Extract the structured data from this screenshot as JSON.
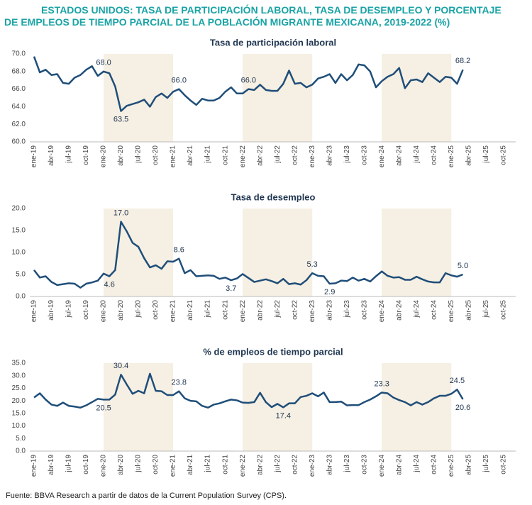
{
  "title": "ESTADOS UNIDOS: TASA DE PARTICIPACIÓN LABORAL, TASA DE DESEMPLEO Y PORCENTAJE DE EMPLEOS DE TIEMPO PARCIAL DE LA POBLACIÓN MIGRANTE MEXICANA, 2019-2022 (%)",
  "source": "Fuente: BBVA Research a partir de datos de la Current Population Survey (CPS).",
  "chart_data": [
    {
      "type": "line",
      "title": "Tasa de participación laboral",
      "categories": [
        "ene-19",
        null,
        null,
        "abr-19",
        null,
        null,
        "jul-19",
        null,
        null,
        "oct-19",
        null,
        null,
        "ene-20",
        null,
        null,
        "abr-20",
        null,
        null,
        "jul-20",
        null,
        null,
        "oct-20",
        null,
        null,
        "ene-21",
        null,
        null,
        "abr-21",
        null,
        null,
        "jul-21",
        null,
        null,
        "oct-21",
        null,
        null,
        "ene-22",
        null,
        null,
        "abr-22",
        null,
        null,
        "jul-22",
        null,
        null,
        "oct-22",
        null,
        null,
        "ene-23",
        null,
        null,
        "abr-23",
        null,
        null,
        "jul-23",
        null,
        null,
        "oct-23",
        null,
        null,
        "ene-24",
        null,
        null,
        "abr-24",
        null,
        null,
        "jul-24",
        null,
        null,
        "oct-24",
        null,
        null,
        "ene-25",
        null,
        null,
        "abr-25",
        null,
        null,
        "jul-25",
        null,
        null,
        "oct-25",
        null,
        null
      ],
      "series": [
        {
          "color": "#1f4e79",
          "values": [
            69.7,
            67.9,
            68.2,
            67.6,
            67.7,
            66.7,
            66.6,
            67.3,
            67.6,
            68.2,
            68.6,
            67.5,
            68.0,
            67.8,
            66.3,
            63.5,
            64.1,
            64.3,
            64.5,
            64.8,
            64.0,
            65.1,
            65.5,
            65.0,
            65.7,
            66.0,
            65.3,
            64.7,
            64.2,
            64.9,
            64.7,
            64.7,
            65.0,
            65.7,
            66.2,
            65.5,
            65.5,
            66.0,
            65.9,
            66.5,
            65.9,
            65.8,
            65.8,
            66.6,
            68.1,
            66.6,
            66.7,
            66.2,
            66.5,
            67.2,
            67.4,
            67.7,
            66.7,
            67.7,
            67.0,
            67.6,
            68.8,
            68.7,
            68.0,
            66.2,
            66.9,
            67.4,
            67.7,
            68.4,
            66.1,
            67.0,
            67.1,
            66.8,
            67.8,
            67.3,
            66.8,
            67.4,
            67.3,
            66.6,
            68.2,
            null,
            null,
            null,
            null,
            null,
            null,
            null,
            null,
            null
          ],
          "value_labels": [
            null,
            null,
            null,
            null,
            null,
            null,
            null,
            null,
            null,
            null,
            null,
            null,
            "68.0",
            null,
            null,
            "63.5",
            null,
            null,
            null,
            null,
            null,
            null,
            null,
            null,
            null,
            "66.0",
            null,
            null,
            null,
            null,
            null,
            null,
            null,
            null,
            null,
            null,
            null,
            "66.0",
            null,
            null,
            null,
            null,
            null,
            null,
            null,
            null,
            null,
            null,
            null,
            null,
            null,
            null,
            null,
            null,
            null,
            null,
            null,
            null,
            null,
            null,
            null,
            null,
            null,
            null,
            null,
            null,
            null,
            null,
            null,
            null,
            null,
            null,
            null,
            null,
            "68.2",
            null,
            null,
            null,
            null,
            null,
            null,
            null,
            null,
            null
          ]
        }
      ],
      "ylim": [
        60,
        70
      ],
      "yticks": [
        {
          "value": 60,
          "label": "60.0"
        },
        {
          "value": 62,
          "label": "62.0"
        },
        {
          "value": 64,
          "label": "64.0"
        },
        {
          "value": 66,
          "label": "66.0"
        },
        {
          "value": 68,
          "label": "68.0"
        },
        {
          "value": 70,
          "label": "70.0"
        }
      ]
    },
    {
      "type": "line",
      "title": "Tasa de desempleo",
      "categories": [
        "ene-19",
        null,
        null,
        "abr-19",
        null,
        null,
        "jul-19",
        null,
        null,
        "oct-19",
        null,
        null,
        "ene-20",
        null,
        null,
        "abr-20",
        null,
        null,
        "jul-20",
        null,
        null,
        "oct-20",
        null,
        null,
        "ene-21",
        null,
        null,
        "abr-21",
        null,
        null,
        "jul-21",
        null,
        null,
        "oct-21",
        null,
        null,
        "ene-22",
        null,
        null,
        "abr-22",
        null,
        null,
        "jul-22",
        null,
        null,
        "oct-22",
        null,
        null,
        "ene-23",
        null,
        null,
        "abr-23",
        null,
        null,
        "jul-23",
        null,
        null,
        "oct-23",
        null,
        null,
        "ene-24",
        null,
        null,
        "abr-24",
        null,
        null,
        "jul-24",
        null,
        null,
        "oct-24",
        null,
        null,
        "ene-25",
        null,
        null,
        "abr-25",
        null,
        null,
        "jul-25",
        null,
        null,
        "oct-25",
        null,
        null
      ],
      "series": [
        {
          "color": "#1f4e79",
          "values": [
            6.0,
            4.3,
            4.6,
            3.3,
            2.6,
            2.8,
            3.0,
            2.9,
            2.0,
            2.9,
            3.2,
            3.6,
            5.2,
            4.6,
            6.0,
            17.0,
            14.8,
            12.2,
            11.3,
            8.7,
            6.6,
            7.1,
            6.3,
            8.0,
            7.9,
            8.6,
            5.3,
            6.0,
            4.6,
            4.7,
            4.8,
            4.7,
            4.0,
            4.3,
            3.7,
            4.1,
            5.1,
            4.2,
            3.3,
            3.6,
            3.9,
            3.5,
            3.0,
            4.0,
            2.8,
            3.0,
            2.7,
            3.7,
            5.3,
            4.7,
            4.6,
            2.9,
            3.0,
            3.6,
            3.5,
            4.3,
            3.6,
            4.0,
            3.4,
            4.6,
            5.7,
            4.7,
            4.3,
            4.4,
            3.8,
            3.8,
            4.5,
            3.9,
            3.4,
            3.2,
            3.2,
            5.3,
            4.8,
            4.5,
            5.0,
            null,
            null,
            null,
            null,
            null,
            null,
            null,
            null,
            null
          ],
          "value_labels": [
            null,
            null,
            null,
            null,
            null,
            null,
            null,
            null,
            null,
            null,
            null,
            null,
            null,
            "4.6",
            null,
            "17.0",
            null,
            null,
            null,
            null,
            null,
            null,
            null,
            null,
            null,
            "8.6",
            null,
            null,
            null,
            null,
            null,
            null,
            null,
            null,
            "3.7",
            null,
            null,
            null,
            null,
            null,
            null,
            null,
            null,
            null,
            null,
            null,
            null,
            null,
            "5.3",
            null,
            null,
            "2.9",
            null,
            null,
            null,
            null,
            null,
            null,
            null,
            null,
            null,
            null,
            null,
            null,
            null,
            null,
            null,
            null,
            null,
            null,
            null,
            null,
            null,
            null,
            "5.0",
            null,
            null,
            null,
            null,
            null,
            null,
            null,
            null,
            null
          ]
        }
      ],
      "ylim": [
        0,
        20
      ],
      "yticks": [
        {
          "value": 0,
          "label": "0.0"
        },
        {
          "value": 5,
          "label": "5.0"
        },
        {
          "value": 10,
          "label": "10.0"
        },
        {
          "value": 15,
          "label": "15.0"
        },
        {
          "value": 20,
          "label": "20.0"
        }
      ]
    },
    {
      "type": "line",
      "title": "% de empleos de tiempo parcial",
      "categories": [
        "ene-19",
        null,
        null,
        "abr-19",
        null,
        null,
        "jul-19",
        null,
        null,
        "oct-19",
        null,
        null,
        "ene-20",
        null,
        null,
        "abr-20",
        null,
        null,
        "jul-20",
        null,
        null,
        "oct-20",
        null,
        null,
        "ene-21",
        null,
        null,
        "abr-21",
        null,
        null,
        "jul-21",
        null,
        null,
        "oct-21",
        null,
        null,
        "ene-22",
        null,
        null,
        "abr-22",
        null,
        null,
        "jul-22",
        null,
        null,
        "oct-22",
        null,
        null,
        "ene-23",
        null,
        null,
        "abr-23",
        null,
        null,
        "jul-23",
        null,
        null,
        "oct-23",
        null,
        null,
        "ene-24",
        null,
        null,
        "abr-24",
        null,
        null,
        "jul-24",
        null,
        null,
        "oct-24",
        null,
        null,
        "ene-25",
        null,
        null,
        "abr-25",
        null,
        null,
        "jul-25",
        null,
        null,
        "oct-25",
        null,
        null
      ],
      "series": [
        {
          "color": "#1f4e79",
          "values": [
            21.3,
            23.0,
            20.5,
            18.5,
            18.0,
            19.3,
            18.0,
            17.7,
            17.3,
            18.2,
            19.5,
            20.8,
            20.5,
            20.5,
            22.5,
            30.4,
            26.5,
            22.8,
            24.0,
            23.0,
            30.8,
            24.0,
            23.8,
            22.3,
            22.3,
            23.8,
            21.0,
            20.0,
            19.8,
            18.0,
            17.3,
            18.5,
            19.0,
            19.8,
            20.5,
            20.2,
            19.3,
            19.2,
            19.5,
            23.2,
            19.5,
            17.5,
            18.8,
            17.4,
            19.0,
            19.0,
            21.5,
            22.0,
            23.0,
            21.8,
            23.3,
            19.5,
            19.5,
            19.7,
            18.2,
            18.3,
            18.3,
            19.5,
            20.5,
            21.8,
            23.3,
            23.0,
            21.3,
            20.3,
            19.5,
            18.2,
            19.5,
            18.5,
            19.5,
            21.0,
            22.0,
            22.0,
            22.8,
            24.5,
            20.6,
            null,
            null,
            null,
            null,
            null,
            null,
            null,
            null,
            null
          ],
          "value_labels": [
            null,
            null,
            null,
            null,
            null,
            null,
            null,
            null,
            null,
            null,
            null,
            null,
            "20.5",
            null,
            null,
            "30.4",
            null,
            null,
            null,
            null,
            null,
            null,
            null,
            null,
            null,
            "23.8",
            null,
            null,
            null,
            null,
            null,
            null,
            null,
            null,
            null,
            null,
            null,
            null,
            null,
            null,
            null,
            null,
            null,
            "17.4",
            null,
            null,
            null,
            null,
            null,
            null,
            null,
            null,
            null,
            null,
            null,
            null,
            null,
            null,
            null,
            null,
            "23.3",
            null,
            null,
            null,
            null,
            null,
            null,
            null,
            null,
            null,
            null,
            null,
            null,
            "24.5",
            "20.6",
            null,
            null,
            null,
            null,
            null,
            null,
            null,
            null,
            null
          ]
        }
      ],
      "ylim": [
        0,
        35
      ],
      "yticks": [
        {
          "value": 0,
          "label": "0.0"
        },
        {
          "value": 5,
          "label": "5.0"
        },
        {
          "value": 10,
          "label": "10.0"
        },
        {
          "value": 15,
          "label": "15.0"
        },
        {
          "value": 20,
          "label": "20.0"
        },
        {
          "value": 25,
          "label": "25.0"
        },
        {
          "value": 30,
          "label": "30.0"
        },
        {
          "value": 35,
          "label": "35.0"
        }
      ]
    }
  ]
}
